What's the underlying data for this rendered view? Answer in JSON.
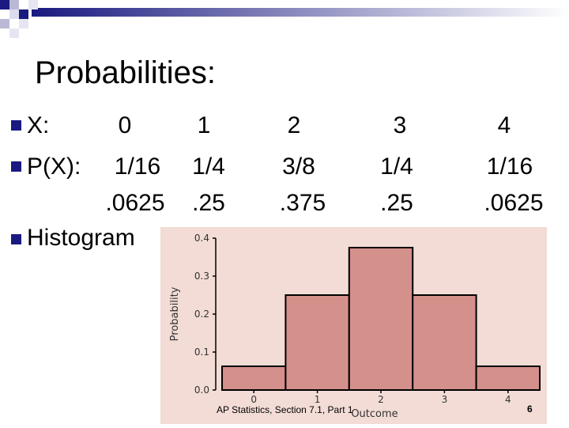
{
  "slide": {
    "title": "Probabilities:",
    "rows": [
      {
        "label": "X:",
        "values": [
          "0",
          "1",
          "2",
          "3",
          "4"
        ]
      },
      {
        "label": "P(X):",
        "values": [
          "1/16",
          "1/4",
          "3/8",
          "1/4",
          "1/16"
        ]
      },
      {
        "label": "",
        "values": [
          ".0625",
          ".25",
          ".375",
          ".25",
          ".0625"
        ]
      }
    ],
    "histogram_label": "Histogram",
    "footer": "AP Statistics, Section 7.1, Part 1",
    "page_number": "6"
  },
  "colors": {
    "bar": "#d4908a",
    "band": "#1a1a80",
    "chart_bg": "#f3dcd6"
  },
  "chart_data": {
    "type": "bar",
    "categories": [
      "0",
      "1",
      "2",
      "3",
      "4"
    ],
    "values": [
      0.0625,
      0.25,
      0.375,
      0.25,
      0.0625
    ],
    "xlabel": "Outcome",
    "ylabel": "Probability",
    "ylim": [
      0,
      0.4
    ],
    "yticks": [
      "0.0",
      "0.1",
      "0.2",
      "0.3",
      "0.4"
    ],
    "grid": false
  }
}
